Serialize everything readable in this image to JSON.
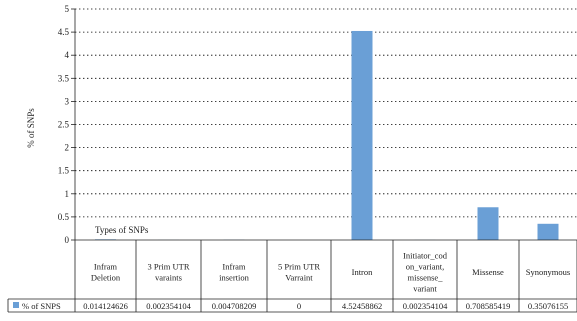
{
  "chart_data": {
    "type": "bar",
    "ylabel": "% of SNPs",
    "xlabel": "Types of SNPs",
    "ylim": [
      0,
      5
    ],
    "yticks": [
      "0",
      "0.5",
      "1",
      "1.5",
      "2",
      "2.5",
      "3",
      "3.5",
      "4",
      "4.5",
      "5"
    ],
    "grid": true,
    "legend": "data table row header",
    "series": [
      {
        "name": "% of SNPS",
        "color": "#6a9fd6",
        "values": [
          0.014124626,
          0.002354104,
          0.004708209,
          0,
          4.52458862,
          0.002354104,
          0.708585419,
          0.35076155
        ]
      }
    ],
    "categories": [
      [
        "Infram",
        "Deletion"
      ],
      [
        "3 Prim UTR",
        "varaints"
      ],
      [
        "Infram",
        "insertion"
      ],
      [
        "5 Prim UTR",
        "Varraint"
      ],
      [
        "Intron"
      ],
      [
        "Initiator_cod",
        "on_variant,",
        "missense_",
        "variant"
      ],
      [
        "Missense"
      ],
      [
        "Synonymous"
      ]
    ],
    "table_values": [
      "0.014124626",
      "0.002354104",
      "0.004708209",
      "0",
      "4.52458862",
      "0.002354104",
      "0.708585419",
      "0.35076155"
    ]
  }
}
